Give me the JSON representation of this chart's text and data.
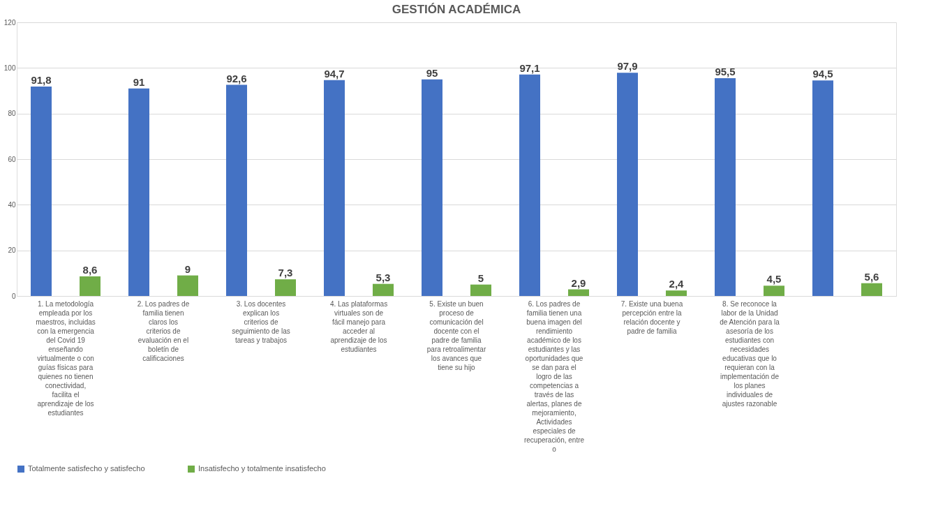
{
  "chart_data": {
    "type": "bar",
    "title": "GESTIÓN ACADÉMICA",
    "categories": [
      "1. La metodología empleada por los maestros, incluidas con la emergencia del Covid 19 enseñando virtualmente o con guías físicas para quienes no tienen conectividad, facilita el aprendizaje de los estudiantes",
      "2. Los padres de familia tienen claros los criterios de evaluación en el boletín de calificaciones",
      "3. Los docentes explican los criterios de seguimiento de las tareas y trabajos",
      "4. Las plataformas virtuales son de fácil manejo para acceder al aprendizaje de los estudiantes",
      "5. Existe un buen proceso de comunicación del docente con el padre de familia para retroalimentar los avances que tiene su hijo",
      "6. Los padres de familia tienen una buena imagen del rendimiento académico de los estudiantes y las oportunidades que se dan para el logro de las competencias a través de las alertas, planes de mejoramiento, Actividades especiales de recuperación, entre o",
      "7. Existe una buena percepción entre la relación docente y padre de familia",
      "8. Se reconoce la labor de la Unidad de Atención para la asesoría de los estudiantes con necesidades educativas que lo requieran con la implementación de los planes individuales de ajustes razonable",
      null
    ],
    "series": [
      {
        "name": "Totalmente satisfecho y satisfecho",
        "color": "#4472c4",
        "values": [
          91.8,
          91,
          92.6,
          94.7,
          95,
          97.1,
          97.9,
          95.5,
          94.5
        ],
        "value_labels": [
          "91,8",
          "91",
          "92,6",
          "94,7",
          "95",
          "97,1",
          "97,9",
          "95,5",
          "94,5"
        ]
      },
      {
        "name": "Insatisfecho y totalmente insatisfecho",
        "color": "#70ad47",
        "values": [
          8.6,
          9,
          7.3,
          5.3,
          5,
          2.9,
          2.4,
          4.5,
          5.6
        ],
        "value_labels": [
          "8,6",
          "9",
          "7,3",
          "5,3",
          "5",
          "2,9",
          "2,4",
          "4,5",
          "5,6"
        ]
      }
    ],
    "ylim": [
      0,
      120
    ],
    "yticks": [
      0,
      20,
      40,
      60,
      80,
      100,
      120
    ],
    "grid": "y",
    "legend": "bottom"
  }
}
